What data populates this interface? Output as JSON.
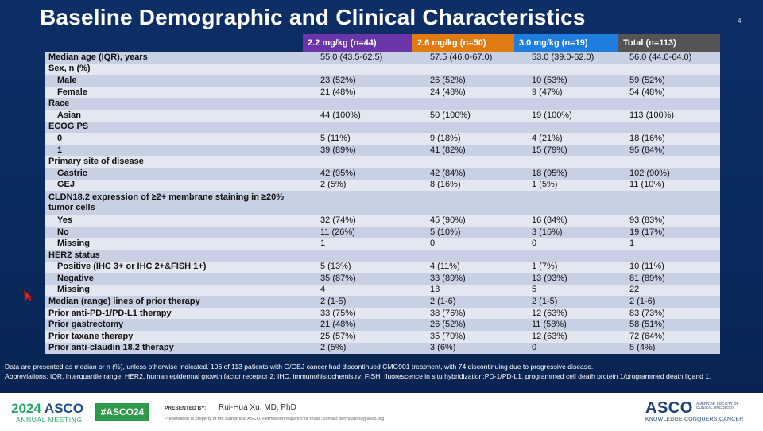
{
  "slide": {
    "title": "Baseline Demographic and Clinical Characteristics",
    "number": "4"
  },
  "table": {
    "headers": [
      {
        "label": "2.2 mg/kg (n=44)",
        "color": "#6a35a8"
      },
      {
        "label": "2.6 mg/kg (n=50)",
        "color": "#e07a12"
      },
      {
        "label": "3.0 mg/kg (n=19)",
        "color": "#1f7de0"
      },
      {
        "label": "Total (n=113)",
        "color": "#545454"
      }
    ],
    "rows": [
      {
        "label": "Median age (IQR), years",
        "indent": false,
        "values": [
          "55.0 (43.5-62.5)",
          "57.5 (46.0-67.0)",
          "53.0 (39.0-62.0)",
          "56.0 (44.0-64.0)"
        ]
      },
      {
        "label": "Sex, n (%)",
        "indent": false,
        "values": [
          "",
          "",
          "",
          ""
        ]
      },
      {
        "label": "Male",
        "indent": true,
        "values": [
          "23 (52%)",
          "26 (52%)",
          "10 (53%)",
          "59 (52%)"
        ]
      },
      {
        "label": "Female",
        "indent": true,
        "values": [
          "21 (48%)",
          "24 (48%)",
          "9 (47%)",
          "54 (48%)"
        ]
      },
      {
        "label": "Race",
        "indent": false,
        "values": [
          "",
          "",
          "",
          ""
        ]
      },
      {
        "label": "Asian",
        "indent": true,
        "values": [
          "44 (100%)",
          "50 (100%)",
          "19 (100%)",
          "113 (100%)"
        ]
      },
      {
        "label": "ECOG PS",
        "indent": false,
        "values": [
          "",
          "",
          "",
          ""
        ]
      },
      {
        "label": "0",
        "indent": true,
        "values": [
          "5 (11%)",
          "9 (18%)",
          "4 (21%)",
          "18 (16%)"
        ]
      },
      {
        "label": "1",
        "indent": true,
        "values": [
          "39 (89%)",
          "41 (82%)",
          "15 (79%)",
          "95 (84%)"
        ]
      },
      {
        "label": "Primary site of disease",
        "indent": false,
        "values": [
          "",
          "",
          "",
          ""
        ]
      },
      {
        "label": "Gastric",
        "indent": true,
        "values": [
          "42 (95%)",
          "42 (84%)",
          "18 (95%)",
          "102 (90%)"
        ]
      },
      {
        "label": "GEJ",
        "indent": true,
        "values": [
          "2 (5%)",
          "8 (16%)",
          "1 (5%)",
          "11 (10%)"
        ]
      },
      {
        "label": "CLDN18.2 expression of ≥2+ membrane staining in ≥20% tumor cells",
        "indent": false,
        "tall": true,
        "values": [
          "",
          "",
          "",
          ""
        ]
      },
      {
        "label": "Yes",
        "indent": true,
        "values": [
          "32 (74%)",
          "45 (90%)",
          "16 (84%)",
          "93 (83%)"
        ]
      },
      {
        "label": "No",
        "indent": true,
        "values": [
          "11 (26%)",
          "5 (10%)",
          "3 (16%)",
          "19 (17%)"
        ]
      },
      {
        "label": "Missing",
        "indent": true,
        "values": [
          "1",
          "0",
          "0",
          "1"
        ]
      },
      {
        "label": "HER2 status",
        "indent": false,
        "values": [
          "",
          "",
          "",
          ""
        ]
      },
      {
        "label": "Positive (IHC 3+ or IHC 2+&FISH 1+)",
        "indent": true,
        "values": [
          "5 (13%)",
          "4 (11%)",
          "1 (7%)",
          "10 (11%)"
        ]
      },
      {
        "label": "Negative",
        "indent": true,
        "values": [
          "35 (87%)",
          "33 (89%)",
          "13 (93%)",
          "81 (89%)"
        ]
      },
      {
        "label": "Missing",
        "indent": true,
        "values": [
          "4",
          "13",
          "5",
          "22"
        ]
      },
      {
        "label": "Median (range) lines of prior therapy",
        "indent": false,
        "values": [
          "2 (1-5)",
          "2 (1-6)",
          "2 (1-5)",
          "2 (1-6)"
        ]
      },
      {
        "label": "Prior anti-PD-1/PD-L1 therapy",
        "indent": false,
        "values": [
          "33 (75%)",
          "38 (76%)",
          "12 (63%)",
          "83 (73%)"
        ]
      },
      {
        "label": "Prior gastrectomy",
        "indent": false,
        "values": [
          "21 (48%)",
          "26 (52%)",
          "11 (58%)",
          "58 (51%)"
        ]
      },
      {
        "label": "Prior taxane therapy",
        "indent": false,
        "values": [
          "25 (57%)",
          "35 (70%)",
          "12 (63%)",
          "72 (64%)"
        ]
      },
      {
        "label": "Prior anti-claudin 18.2 therapy",
        "indent": false,
        "values": [
          "2 (5%)",
          "3 (6%)",
          "0",
          "5 (4%)"
        ]
      }
    ]
  },
  "footnote": {
    "line1": "Data are presented as median or n (%), unless otherwise indicated. 106 of 113 patients with G/GEJ cancer had discontinued CMG901 treatment, with 74 discontinuing due to progressive disease.",
    "line2": "Abbreviations: IQR, interquartile range; HER2, human epidermal growth factor receptor 2; IHC, immunohistochemistry; FISH, fluorescence in situ hybridization;PD-1/PD-L1, programmed cell death protein 1/programmed death ligand 1."
  },
  "footer": {
    "year": "2024",
    "brand": "ASCO",
    "meeting": "ANNUAL MEETING",
    "hashtag": "#ASCO24",
    "presented_by_label": "PRESENTED BY:",
    "presenter": "Rui-Hua Xu, MD, PhD",
    "property_note": "Presentation is property of the author and ASCO. Permission required for reuse; contact permissions@asco.org",
    "logo": "ASCO",
    "logo_sub": "AMERICAN SOCIETY OF CLINICAL ONCOLOGY",
    "tagline": "KNOWLEDGE CONQUERS CANCER"
  },
  "icons": {
    "cursor": "arrow-cursor-icon"
  },
  "colors": {
    "slide_bg": "#0b2a5b",
    "row_dark": "#c8d0e4",
    "row_light": "#e3e7f1",
    "cursor": "#e0201a"
  }
}
